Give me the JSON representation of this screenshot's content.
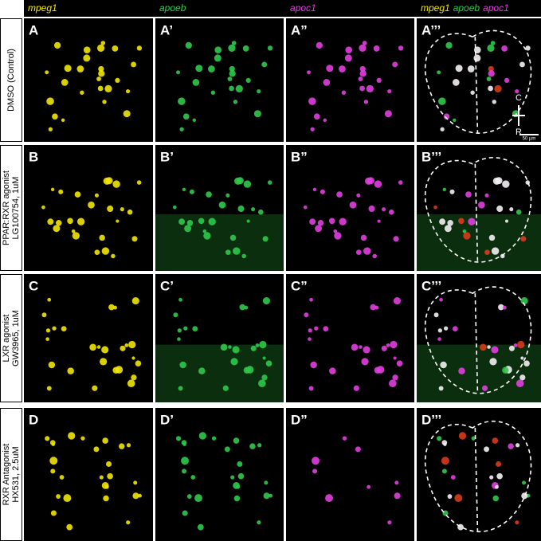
{
  "column_headers": [
    "mpeg1",
    "apoeb",
    "apoc1"
  ],
  "merge_header": [
    "mpeg1",
    "apoeb",
    "apoc1"
  ],
  "rows": [
    {
      "label_lines": [
        "DMSO (Control)"
      ],
      "panels": [
        "A",
        "A’",
        "A”",
        "A’’’"
      ]
    },
    {
      "label_lines": [
        "PPAR:RXR agonist",
        "LG100754, 1uM"
      ],
      "panels": [
        "B",
        "B’",
        "B”",
        "B’’’"
      ]
    },
    {
      "label_lines": [
        "LXR agonist",
        "GW3965, 1uM"
      ],
      "panels": [
        "C",
        "C’",
        "C”",
        "C’’’"
      ]
    },
    {
      "label_lines": [
        "RXR Antagonist",
        "HX531, 2.5uM"
      ],
      "panels": [
        "D",
        "D’",
        "D”",
        "D’’’"
      ]
    }
  ],
  "orientation": {
    "top": "C",
    "bottom": "R"
  },
  "scale_bar": "50 µm"
}
